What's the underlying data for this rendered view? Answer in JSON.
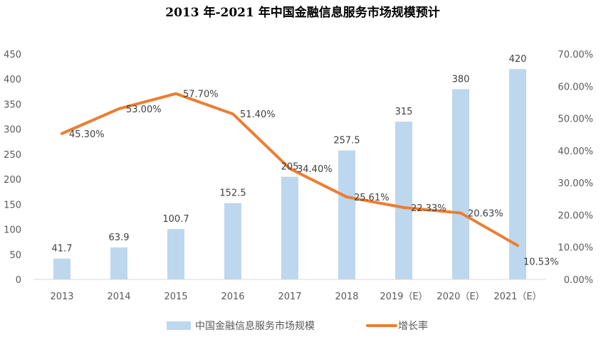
{
  "chart_data": {
    "type": "bar+line",
    "title": "2013 年-2021 年中国金融信息服务市场规模预计",
    "categories": [
      "2013",
      "2014",
      "2015",
      "2016",
      "2017",
      "2018",
      "2019（E）",
      "2020（E）",
      "2021（E）"
    ],
    "series": [
      {
        "name": "中国金融信息服务市场规模",
        "type": "bar",
        "axis": "left",
        "color": "#bdd7ee",
        "values": [
          41.7,
          63.9,
          100.7,
          152.5,
          205,
          257.5,
          315,
          380,
          420
        ],
        "labels": [
          "41.7",
          "63.9",
          "100.7",
          "152.5",
          "205",
          "257.5",
          "315",
          "380",
          "420"
        ]
      },
      {
        "name": "增长率",
        "type": "line",
        "axis": "right",
        "color": "#ed7d31",
        "values": [
          45.3,
          53.0,
          57.7,
          51.4,
          34.4,
          25.61,
          22.33,
          20.63,
          10.53
        ],
        "labels": [
          "45.30%",
          "53.00%",
          "57.70%",
          "51.40%",
          "34.40%",
          "25.61%",
          "22.33%",
          "20.63%",
          "10.53%"
        ]
      }
    ],
    "yleft": {
      "range": [
        0,
        450
      ],
      "ticks": [
        "0",
        "50",
        "100",
        "150",
        "200",
        "250",
        "300",
        "350",
        "400",
        "450"
      ]
    },
    "yright": {
      "range": [
        0,
        70
      ],
      "ticks": [
        "0.00%",
        "10.00%",
        "20.00%",
        "30.00%",
        "40.00%",
        "50.00%",
        "60.00%",
        "70.00%"
      ]
    },
    "grid": false,
    "legend": "bottom"
  }
}
